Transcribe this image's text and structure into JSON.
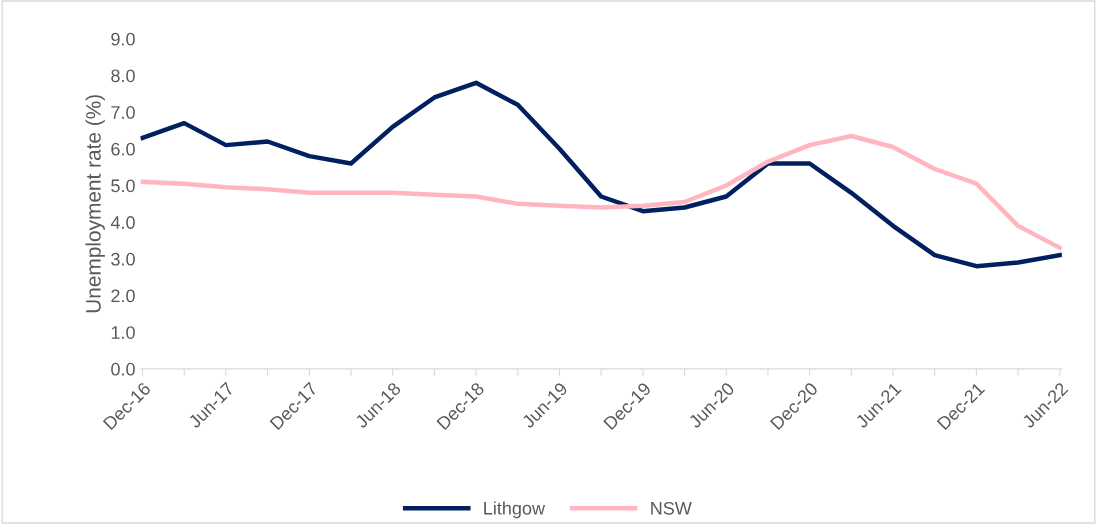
{
  "chart_data": {
    "type": "line",
    "ylabel": "Unemployment rate (%)",
    "categories": [
      "Dec-16",
      null,
      "Jun-17",
      null,
      "Dec-17",
      null,
      "Jun-18",
      null,
      "Dec-18",
      null,
      "Jun-19",
      null,
      "Dec-19",
      null,
      "Jun-20",
      null,
      "Dec-20",
      null,
      "Jun-21",
      null,
      "Dec-21",
      null,
      "Jun-22"
    ],
    "series": [
      {
        "name": "Lithgow",
        "color": "#002060",
        "values": [
          6.3,
          6.7,
          6.1,
          6.2,
          5.8,
          5.6,
          6.6,
          7.4,
          7.8,
          7.2,
          6.0,
          4.7,
          4.3,
          4.4,
          4.7,
          5.6,
          5.6,
          4.8,
          3.9,
          3.1,
          2.8,
          2.9,
          3.1
        ]
      },
      {
        "name": "NSW",
        "color": "#ffb6c1",
        "values": [
          5.1,
          5.05,
          4.95,
          4.9,
          4.8,
          4.8,
          4.8,
          4.75,
          4.7,
          4.5,
          4.45,
          4.4,
          4.45,
          4.55,
          5.0,
          5.65,
          6.1,
          6.35,
          6.05,
          5.45,
          5.05,
          3.9,
          3.3
        ]
      }
    ],
    "ylim": [
      0,
      9
    ],
    "yticks": [
      {
        "value": 0,
        "label": "0.0"
      },
      {
        "value": 1,
        "label": "1.0"
      },
      {
        "value": 2,
        "label": "2.0"
      },
      {
        "value": 3,
        "label": "3.0"
      },
      {
        "value": 4,
        "label": "4.0"
      },
      {
        "value": 5,
        "label": "5.0"
      },
      {
        "value": 6,
        "label": "6.0"
      },
      {
        "value": 7,
        "label": "7.0"
      },
      {
        "value": 8,
        "label": "8.0"
      },
      {
        "value": 9,
        "label": "9.0"
      }
    ],
    "grid": false,
    "legend": "bottom",
    "marker": "none",
    "line_style": "solid"
  }
}
